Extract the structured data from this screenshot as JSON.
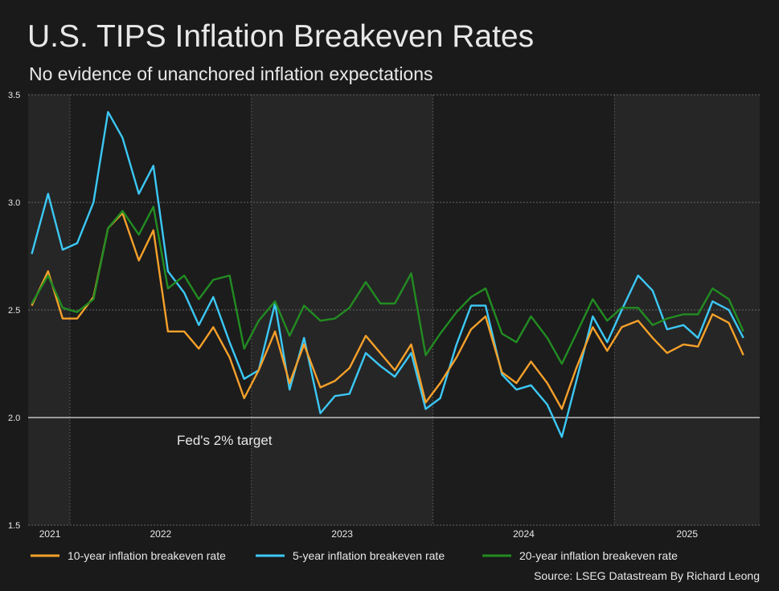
{
  "chart_data": {
    "type": "line",
    "title": "U.S. TIPS Inflation Breakeven Rates",
    "subtitle": "No evidence of unanchored inflation expectations",
    "source": "Source: LSEG Datastream By Richard Leong",
    "x": [
      2021.79,
      2021.88,
      2021.96,
      2022.04,
      2022.13,
      2022.21,
      2022.29,
      2022.38,
      2022.46,
      2022.54,
      2022.63,
      2022.71,
      2022.79,
      2022.88,
      2022.96,
      2023.04,
      2023.13,
      2023.21,
      2023.29,
      2023.38,
      2023.46,
      2023.54,
      2023.63,
      2023.71,
      2023.79,
      2023.88,
      2023.96,
      2024.04,
      2024.13,
      2024.21,
      2024.29,
      2024.38,
      2024.46,
      2024.54,
      2024.63,
      2024.71,
      2024.79,
      2024.88,
      2024.96,
      2025.04,
      2025.13,
      2025.21,
      2025.29,
      2025.38,
      2025.46,
      2025.54,
      2025.63,
      2025.71
    ],
    "xlim": [
      2021.77,
      2025.8
    ],
    "xticks": [
      {
        "value": 2021.89,
        "label": "2021"
      },
      {
        "value": 2022.5,
        "label": "2022"
      },
      {
        "value": 2023.5,
        "label": "2023"
      },
      {
        "value": 2024.5,
        "label": "2024"
      },
      {
        "value": 2025.4,
        "label": "2025"
      }
    ],
    "xgrid": [
      2022,
      2023,
      2024,
      2025
    ],
    "ylim": [
      1.5,
      3.5
    ],
    "yticks": [
      1.5,
      {
        "value": 2,
        "label": "2.0"
      },
      2.5,
      {
        "value": 3,
        "label": "3.0"
      },
      3.5
    ],
    "grid": true,
    "reference_line": {
      "value": 2,
      "label": "Fed's 2% target"
    },
    "series": [
      {
        "name": "10-year inflation breakeven rate",
        "color": "#f5a02a",
        "values": [
          2.52,
          2.68,
          2.46,
          2.46,
          2.56,
          2.88,
          2.95,
          2.73,
          2.87,
          2.4,
          2.4,
          2.32,
          2.42,
          2.28,
          2.09,
          2.22,
          2.4,
          2.16,
          2.34,
          2.14,
          2.17,
          2.23,
          2.38,
          2.3,
          2.22,
          2.34,
          2.07,
          2.16,
          2.28,
          2.41,
          2.47,
          2.21,
          2.16,
          2.26,
          2.16,
          2.04,
          2.23,
          2.42,
          2.31,
          2.42,
          2.45,
          2.37,
          2.3,
          2.34,
          2.33,
          2.48,
          2.44,
          2.29
        ]
      },
      {
        "name": "5-year inflation breakeven rate",
        "color": "#3cc8f5",
        "values": [
          2.76,
          3.04,
          2.78,
          2.81,
          3.0,
          3.42,
          3.3,
          3.04,
          3.17,
          2.68,
          2.58,
          2.43,
          2.56,
          2.35,
          2.18,
          2.22,
          2.53,
          2.13,
          2.37,
          2.02,
          2.1,
          2.11,
          2.3,
          2.24,
          2.19,
          2.3,
          2.04,
          2.09,
          2.34,
          2.52,
          2.52,
          2.2,
          2.13,
          2.15,
          2.06,
          1.91,
          2.17,
          2.47,
          2.35,
          2.5,
          2.66,
          2.59,
          2.41,
          2.43,
          2.37,
          2.54,
          2.5,
          2.37
        ]
      },
      {
        "name": "20-year inflation breakeven rate",
        "color": "#228c22",
        "values": [
          2.53,
          2.66,
          2.51,
          2.49,
          2.55,
          2.88,
          2.96,
          2.85,
          2.98,
          2.6,
          2.66,
          2.55,
          2.64,
          2.66,
          2.32,
          2.45,
          2.54,
          2.38,
          2.52,
          2.45,
          2.46,
          2.51,
          2.63,
          2.53,
          2.53,
          2.67,
          2.29,
          2.39,
          2.49,
          2.56,
          2.6,
          2.39,
          2.35,
          2.47,
          2.37,
          2.25,
          2.39,
          2.55,
          2.45,
          2.51,
          2.51,
          2.43,
          2.46,
          2.48,
          2.48,
          2.6,
          2.55,
          2.4
        ]
      }
    ]
  }
}
